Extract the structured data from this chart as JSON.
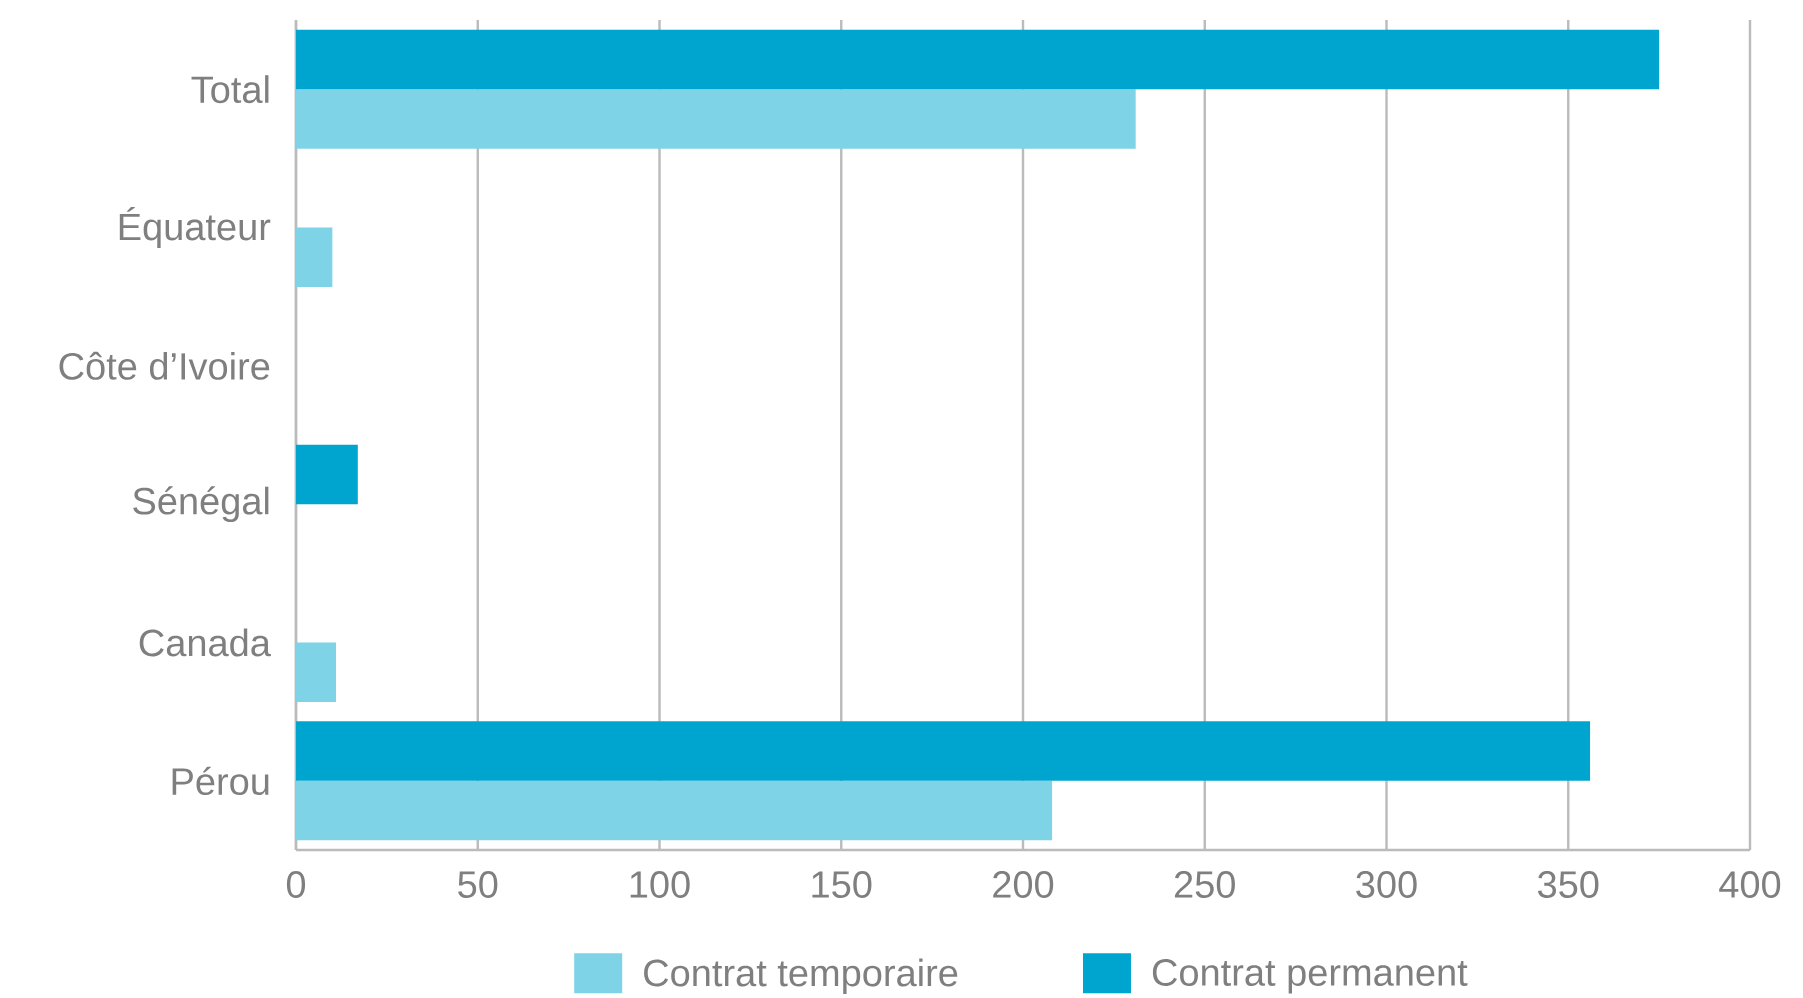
{
  "chart_data": {
    "type": "bar",
    "orientation": "horizontal",
    "categories": [
      "Total",
      "Équateur",
      "Côte d’Ivoire",
      "Sénégal",
      "Canada",
      "Pérou"
    ],
    "series": [
      {
        "name": "Contrat temporaire",
        "color": "#7fd3e6",
        "values": [
          231,
          10,
          null,
          null,
          11,
          208
        ]
      },
      {
        "name": "Contrat permanent",
        "color": "#00a5cf",
        "values": [
          375,
          null,
          null,
          17,
          null,
          356
        ]
      }
    ],
    "xlim": [
      0,
      400
    ],
    "xticks": [
      0,
      50,
      100,
      150,
      200,
      250,
      300,
      350,
      400
    ],
    "grid": "x",
    "legend": "bottom"
  }
}
